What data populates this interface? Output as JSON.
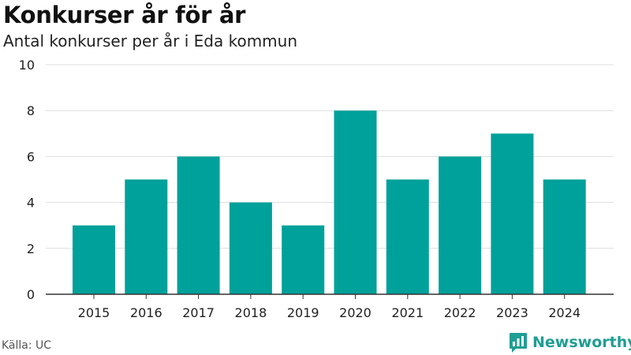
{
  "header": {
    "title": "Konkurser år för år",
    "subtitle": "Antal konkurser per år i Eda kommun"
  },
  "footer": {
    "source": "Källa: UC",
    "brand": "Newsworthy"
  },
  "colors": {
    "bar": "#00a19a",
    "grid": "#dddddd",
    "axis": "#333333",
    "brand": "#1f9e93"
  },
  "chart_data": {
    "type": "bar",
    "categories": [
      "2015",
      "2016",
      "2017",
      "2018",
      "2019",
      "2020",
      "2021",
      "2022",
      "2023",
      "2024"
    ],
    "values": [
      3,
      5,
      6,
      4,
      3,
      8,
      5,
      6,
      7,
      5
    ],
    "ylim": [
      0,
      10
    ],
    "yticks": [
      0,
      2,
      4,
      6,
      8,
      10
    ],
    "grid": true,
    "legend": false
  }
}
